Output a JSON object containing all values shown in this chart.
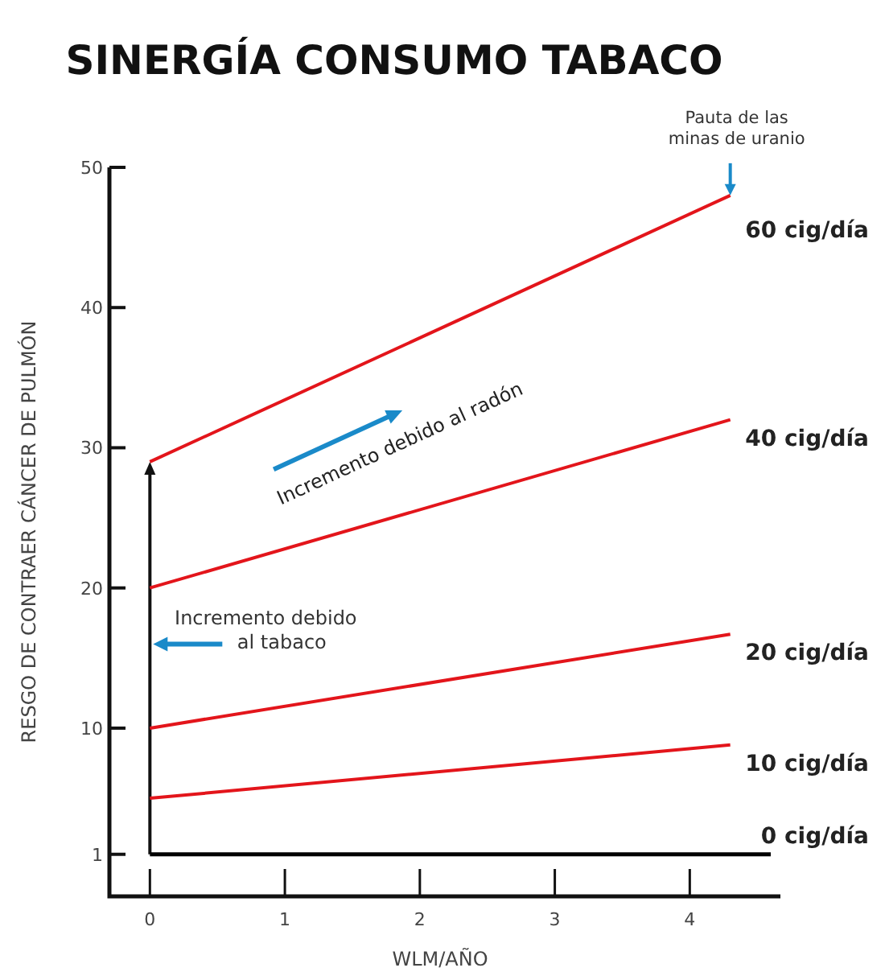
{
  "chart_data": {
    "type": "line",
    "title": "SINERGÍA CONSUMO TABACO",
    "xlabel": "WLM/AÑO",
    "ylabel": "RESGO DE CONTRAER CÁNCER DE PULMÓN",
    "xlim": [
      -0.3,
      4.6
    ],
    "xticks": [
      0,
      1,
      2,
      3,
      4
    ],
    "ylim": [
      -2,
      50
    ],
    "yticks": [
      1,
      10,
      20,
      30,
      40,
      50
    ],
    "grid": false,
    "marker": "none",
    "line_style": "solid",
    "series": [
      {
        "name": "60 cig/día",
        "color": "#e3151b",
        "x": [
          0,
          4.3
        ],
        "values": [
          29,
          48
        ]
      },
      {
        "name": "40 cig/día",
        "color": "#e3151b",
        "x": [
          0,
          4.3
        ],
        "values": [
          20,
          32
        ]
      },
      {
        "name": "20 cig/día",
        "color": "#e3151b",
        "x": [
          0,
          4.3
        ],
        "values": [
          10,
          16.7
        ]
      },
      {
        "name": "10 cig/día",
        "color": "#e3151b",
        "x": [
          0,
          4.3
        ],
        "values": [
          5,
          8.8
        ]
      },
      {
        "name": "0 cig/día",
        "color": "#000000",
        "x": [
          0,
          4.6
        ],
        "values": [
          1,
          1
        ]
      }
    ],
    "annotations": [
      {
        "text": "Pauta de las minas de uranio",
        "x": 4.3,
        "y": 48
      },
      "Incremento debido al radón",
      "Incremento debido al tabaco"
    ]
  }
}
